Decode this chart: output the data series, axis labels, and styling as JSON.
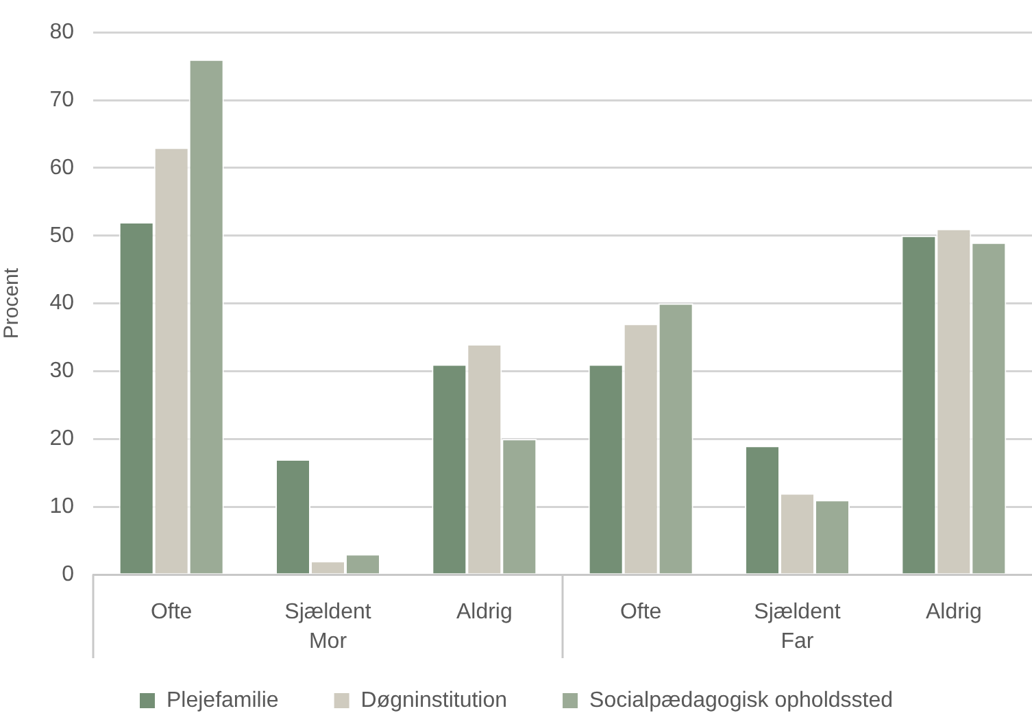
{
  "chart_data": {
    "type": "bar",
    "ylabel": "Procent",
    "categories": [
      "Ofte",
      "Sjældent",
      "Aldrig",
      "Ofte",
      "Sjældent",
      "Aldrig"
    ],
    "series": [
      {
        "name": "Plejefamilie",
        "color": "#748f75",
        "values": [
          52,
          17,
          31,
          31,
          19,
          50
        ]
      },
      {
        "name": "Døgninstitution",
        "color": "#cfcbbf",
        "values": [
          63,
          2,
          34,
          37,
          12,
          51
        ]
      },
      {
        "name": "Socialpædagogisk opholdssted",
        "color": "#9bab96",
        "values": [
          76,
          3,
          20,
          40,
          11,
          49
        ]
      }
    ],
    "annotations": [
      "Mor",
      "Far"
    ],
    "ylim": [
      0,
      80
    ],
    "yticks": [
      0,
      10,
      20,
      30,
      40,
      50,
      60,
      70,
      80
    ],
    "grid": "y",
    "legend": "bottom"
  }
}
